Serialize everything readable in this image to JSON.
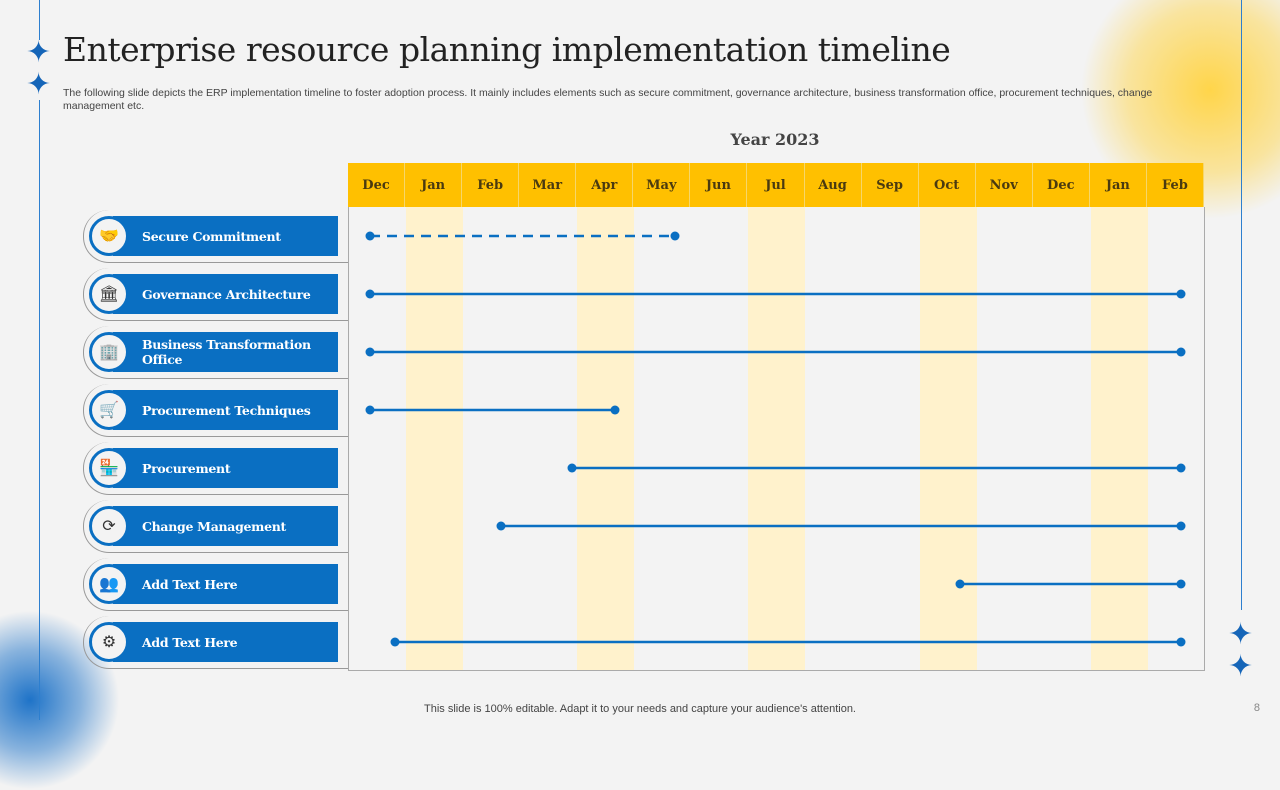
{
  "title": "Enterprise resource planning implementation timeline",
  "subtitle": "The following slide depicts the ERP implementation timeline to foster adoption process. It mainly includes elements such as secure commitment, governance architecture, business transformation office, procurement techniques, change management etc.",
  "year_label": "Year 2023",
  "months": [
    "Dec",
    "Jan",
    "Feb",
    "Mar",
    "Apr",
    "May",
    "Jun",
    "Jul",
    "Aug",
    "Sep",
    "Oct",
    "Nov",
    "Dec",
    "Jan",
    "Feb"
  ],
  "highlight_color": "#fff2cc",
  "header_color": "#ffc000",
  "accent": "#0a6fc2",
  "rows": [
    {
      "label": "Secure Commitment",
      "icon": "handshake-shield-icon",
      "start": "Dec",
      "end": "May",
      "style": "dashed"
    },
    {
      "label": "Governance Architecture",
      "icon": "government-building-icon",
      "start": "Dec",
      "end": "Feb",
      "style": "solid"
    },
    {
      "label": "Business Transformation Office",
      "icon": "office-building-icon",
      "start": "Dec",
      "end": "Feb",
      "style": "solid"
    },
    {
      "label": "Procurement Techniques",
      "icon": "shopping-cart-person-icon",
      "start": "Dec",
      "end": "Apr",
      "style": "solid"
    },
    {
      "label": "Procurement",
      "icon": "store-icon",
      "start": "Apr",
      "end": "Feb",
      "style": "solid"
    },
    {
      "label": "Change Management",
      "icon": "cycle-icon",
      "start": "Feb",
      "end": "Feb",
      "style": "solid"
    },
    {
      "label": "Add Text Here",
      "icon": "people-money-icon",
      "start": "Oct",
      "end": "Feb",
      "style": "solid"
    },
    {
      "label": "Add Text Here",
      "icon": "erp-chip-icon",
      "start": "Dec",
      "end": "Feb",
      "style": "solid"
    }
  ],
  "footer": "This slide is 100% editable. Adapt it to your needs and capture your audience's attention.",
  "page_number": "8"
}
